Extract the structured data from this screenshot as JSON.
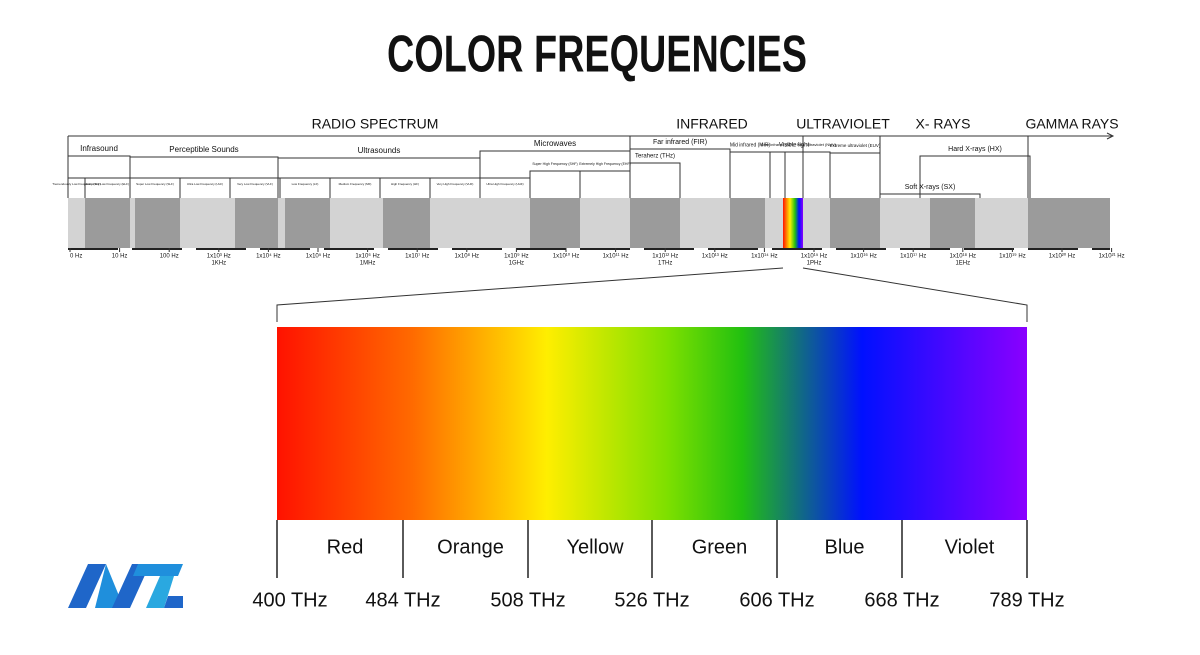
{
  "title": "COLOR FREQUENCIES",
  "regions": [
    "RADIO SPECTRUM",
    "INFRARED",
    "ULTRAVIOLET",
    "X- RAYS",
    "GAMMA RAYS"
  ],
  "sub_regions": [
    "Infrasound",
    "Perceptible Sounds",
    "Ultrasounds",
    "Microwaves",
    "Far infrared (FIR)",
    "Teraherz (THz)",
    "Mid infrared (MIR)",
    "Near infrared (NIR)",
    "Visible light",
    "Near ultraviolet (NUV)",
    "Extreme ultraviolet (EUV)",
    "Hard X-rays (HX)",
    "Soft X-rays (SX)",
    "Super High Frequency (SHF)",
    "Extremely High Frequency (EHF)"
  ],
  "bands": [
    "Tremendously Low Frequency (TLF)",
    "Extremely Low Frequency (ELF)",
    "Super Low Frequency (SLF)",
    "Ultra Low Frequency (ULF)",
    "Very Low Frequency (VLF)",
    "Low Frequency (LF)",
    "Medium Frequency (MF)",
    "High Frequency (HF)",
    "Very High Frequency (VHF)",
    "Ultra High Frequency (UHF)"
  ],
  "axis_labels": [
    {
      "label": "0 Hz"
    },
    {
      "label": "10 Hz"
    },
    {
      "label": "100 Hz"
    },
    {
      "label": "1x10³ Hz",
      "unit": "1KHz"
    },
    {
      "label": "1x10⁴ Hz"
    },
    {
      "label": "1x10⁵ Hz"
    },
    {
      "label": "1x10⁶ Hz",
      "unit": "1MHz"
    },
    {
      "label": "1x10⁷ Hz"
    },
    {
      "label": "1x10⁸ Hz"
    },
    {
      "label": "1x10⁹ Hz",
      "unit": "1GHz"
    },
    {
      "label": "1x10¹⁰ Hz"
    },
    {
      "label": "1x10¹¹ Hz"
    },
    {
      "label": "1x10¹² Hz",
      "unit": "1THz"
    },
    {
      "label": "1x10¹³ Hz"
    },
    {
      "label": "1x10¹⁴ Hz"
    },
    {
      "label": "1x10¹⁵ Hz",
      "unit": "1PHz"
    },
    {
      "label": "1x10¹⁶ Hz"
    },
    {
      "label": "1x10¹⁷ Hz"
    },
    {
      "label": "1x10¹⁸ Hz",
      "unit": "1EHz"
    },
    {
      "label": "1x10¹⁹ Hz"
    },
    {
      "label": "1x10²⁰ Hz"
    },
    {
      "label": "1x10²¹ Hz"
    }
  ],
  "colors": [
    "Red",
    "Orange",
    "Yellow",
    "Green",
    "Blue",
    "Violet"
  ],
  "frequencies": [
    "400 THz",
    "484 THz",
    "508 THz",
    "526 THz",
    "606 THz",
    "668 THz",
    "789 THz"
  ]
}
